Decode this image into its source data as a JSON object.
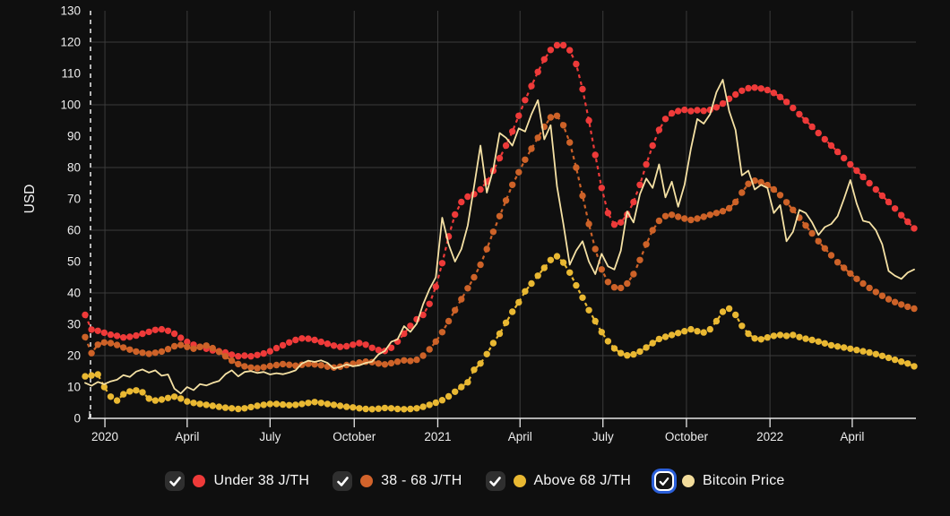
{
  "chart_data": {
    "type": "line",
    "title": "",
    "xlabel": "",
    "ylabel": "USD",
    "ylim": [
      0,
      130
    ],
    "y_tick_step": 10,
    "grid_value_step": 20,
    "grid": true,
    "legend_position": "bottom",
    "weeks_total": 130,
    "x_ticks": [
      {
        "label": "2020",
        "week": 3.1
      },
      {
        "label": "April",
        "week": 16.0
      },
      {
        "label": "July",
        "week": 29.0
      },
      {
        "label": "October",
        "week": 42.2
      },
      {
        "label": "2021",
        "week": 55.3
      },
      {
        "label": "April",
        "week": 68.2
      },
      {
        "label": "July",
        "week": 81.2
      },
      {
        "label": "October",
        "week": 94.3
      },
      {
        "label": "2022",
        "week": 107.4
      },
      {
        "label": "April",
        "week": 120.3
      }
    ],
    "series": [
      {
        "name": "Under 38 J/TH",
        "style": "dotted",
        "color": "#ee3a39",
        "values": [
          33.0,
          28.3,
          27.9,
          27.3,
          26.7,
          26.3,
          25.8,
          26.0,
          26.4,
          27.0,
          27.6,
          28.2,
          28.4,
          27.9,
          27.0,
          25.7,
          24.4,
          23.5,
          22.8,
          22.2,
          21.7,
          21.4,
          21.0,
          20.3,
          19.8,
          20.0,
          19.8,
          20.2,
          20.7,
          21.4,
          22.4,
          23.3,
          24.2,
          25.0,
          25.5,
          25.4,
          25.0,
          24.4,
          23.8,
          23.2,
          22.8,
          23.0,
          23.5,
          24.0,
          23.5,
          22.5,
          21.8,
          21.5,
          22.5,
          24.5,
          27.0,
          29.5,
          31.6,
          33.0,
          36.5,
          42.0,
          49.5,
          58.0,
          65.0,
          69.0,
          70.7,
          71.5,
          73.0,
          75.5,
          79.0,
          83.0,
          87.0,
          91.5,
          96.5,
          101.5,
          106.0,
          110.5,
          114.5,
          117.5,
          119.0,
          119.0,
          117.4,
          113.0,
          105.0,
          95.0,
          84.0,
          73.5,
          65.5,
          61.8,
          62.5,
          65.0,
          69.0,
          74.5,
          81.0,
          87.0,
          92.0,
          95.5,
          97.3,
          98.0,
          98.4,
          98.0,
          98.3,
          98.1,
          98.4,
          99.2,
          100.4,
          101.9,
          103.3,
          104.5,
          105.3,
          105.5,
          105.2,
          104.7,
          103.8,
          102.5,
          100.9,
          99.0,
          97.0,
          95.0,
          93.0,
          91.0,
          89.0,
          87.0,
          85.0,
          83.0,
          81.0,
          79.0,
          77.0,
          75.0,
          73.0,
          71.0,
          69.0,
          66.9,
          64.8,
          62.7,
          60.6
        ]
      },
      {
        "name": "38 - 68 J/TH",
        "style": "dotted",
        "color": "#cd6228",
        "values": [
          25.9,
          20.8,
          23.5,
          24.2,
          24.0,
          23.4,
          22.6,
          21.9,
          21.3,
          20.9,
          20.6,
          20.9,
          21.3,
          22.1,
          23.0,
          23.4,
          22.8,
          22.2,
          22.8,
          23.2,
          22.4,
          21.2,
          19.8,
          18.4,
          17.3,
          16.6,
          16.2,
          16.0,
          16.3,
          16.7,
          17.0,
          17.3,
          17.1,
          16.8,
          17.1,
          17.4,
          17.2,
          16.9,
          16.5,
          16.2,
          16.5,
          17.0,
          17.4,
          17.8,
          18.1,
          17.9,
          17.5,
          17.2,
          17.6,
          18.1,
          18.5,
          18.3,
          18.7,
          20.0,
          22.0,
          24.5,
          27.5,
          31.0,
          34.5,
          38.0,
          41.5,
          45.0,
          49.0,
          54.0,
          59.5,
          64.5,
          69.5,
          74.5,
          78.5,
          82.5,
          86.0,
          89.5,
          93.0,
          96.0,
          96.5,
          93.5,
          88.0,
          80.0,
          71.0,
          62.0,
          54.0,
          47.5,
          43.5,
          41.8,
          41.6,
          43.0,
          46.0,
          50.5,
          55.5,
          60.0,
          63.0,
          64.5,
          64.9,
          64.3,
          63.7,
          63.3,
          63.7,
          64.3,
          64.9,
          65.5,
          66.1,
          67.0,
          69.0,
          72.0,
          74.8,
          75.8,
          75.3,
          74.4,
          73.0,
          71.2,
          68.9,
          66.5,
          64.0,
          61.5,
          59.0,
          56.5,
          54.2,
          52.0,
          49.8,
          48.0,
          46.2,
          44.5,
          43.0,
          41.6,
          40.3,
          39.1,
          38.0,
          37.1,
          36.3,
          35.6,
          35.0
        ]
      },
      {
        "name": "Above 68 J/TH",
        "style": "dotted",
        "color": "#e9b832",
        "values": [
          13.4,
          13.7,
          14.0,
          10.0,
          6.9,
          5.7,
          7.7,
          8.6,
          8.9,
          8.3,
          6.3,
          5.7,
          6.0,
          6.5,
          6.9,
          6.3,
          5.4,
          4.9,
          4.6,
          4.3,
          4.0,
          3.7,
          3.4,
          3.2,
          3.0,
          3.2,
          3.6,
          4.0,
          4.3,
          4.6,
          4.6,
          4.4,
          4.2,
          4.3,
          4.6,
          4.9,
          5.2,
          4.9,
          4.6,
          4.3,
          4.0,
          3.7,
          3.5,
          3.2,
          3.0,
          2.9,
          3.1,
          3.3,
          3.2,
          3.0,
          2.9,
          3.0,
          3.2,
          3.7,
          4.3,
          5.0,
          5.8,
          7.0,
          8.5,
          10.0,
          11.5,
          15.5,
          17.5,
          20.5,
          24.0,
          27.0,
          30.5,
          34.0,
          37.0,
          40.5,
          43.0,
          45.5,
          48.0,
          50.5,
          51.7,
          49.7,
          46.5,
          42.4,
          38.5,
          34.5,
          31.0,
          27.5,
          24.6,
          22.3,
          20.8,
          20.1,
          20.4,
          21.3,
          22.6,
          24.0,
          25.3,
          26.0,
          26.6,
          27.2,
          27.8,
          28.4,
          27.8,
          27.4,
          28.4,
          31.0,
          34.0,
          35.0,
          33.0,
          29.5,
          27.0,
          25.5,
          25.2,
          25.8,
          26.3,
          26.6,
          26.3,
          26.6,
          25.9,
          25.4,
          25.0,
          24.5,
          23.9,
          23.3,
          22.9,
          22.6,
          22.2,
          21.8,
          21.4,
          21.0,
          20.5,
          19.9,
          19.3,
          18.7,
          18.1,
          17.5,
          16.6
        ]
      },
      {
        "name": "Bitcoin Price",
        "style": "line",
        "color": "#f5e1a4",
        "values": [
          11.3,
          10.4,
          11.6,
          10.9,
          11.8,
          12.3,
          13.8,
          13.2,
          14.9,
          15.6,
          14.6,
          15.3,
          13.6,
          14.0,
          9.5,
          7.9,
          10.0,
          9.0,
          10.9,
          10.5,
          11.3,
          11.9,
          14.1,
          15.3,
          13.4,
          14.8,
          15.1,
          14.5,
          14.8,
          14.0,
          14.4,
          14.1,
          14.6,
          15.3,
          17.5,
          18.4,
          18.0,
          18.5,
          17.7,
          15.9,
          16.4,
          17.2,
          16.6,
          16.9,
          17.7,
          18.1,
          20.4,
          21.5,
          24.4,
          25.2,
          29.4,
          27.6,
          30.2,
          36.4,
          41.2,
          45.0,
          64.0,
          55.5,
          50.0,
          54.0,
          61.5,
          74.0,
          87.0,
          72.0,
          79.5,
          91.0,
          89.5,
          87.0,
          92.5,
          91.5,
          97.0,
          101.5,
          89.0,
          93.5,
          74.0,
          62.0,
          49.0,
          53.5,
          56.5,
          50.0,
          46.0,
          52.5,
          48.5,
          47.5,
          53.5,
          66.0,
          62.5,
          71.5,
          76.5,
          73.5,
          81.0,
          70.5,
          75.5,
          67.5,
          74.5,
          86.0,
          95.5,
          94.0,
          97.0,
          104.0,
          108.0,
          98.0,
          92.0,
          77.5,
          79.0,
          73.0,
          74.5,
          73.5,
          65.5,
          68.0,
          56.5,
          59.5,
          66.5,
          65.5,
          62.5,
          58.5,
          61.0,
          62.0,
          64.5,
          70.0,
          76.0,
          68.5,
          63.0,
          62.5,
          60.0,
          55.5,
          47.0,
          45.5,
          44.5,
          46.5,
          47.5
        ]
      }
    ],
    "annotations": {
      "data_start_marker": "dashed vertical line at series start"
    }
  },
  "colors": {
    "background": "#0f0f0f",
    "gridline": "#3b3b3b",
    "axis_line": "#e6e6e6",
    "tick_text": "#ededed",
    "start_marker": "#ffffff",
    "focus_ring": "#2b5fd9"
  },
  "legend": {
    "items": [
      {
        "label": "Under 38 J/TH",
        "color": "#ee3a39",
        "checked": true,
        "focused": false
      },
      {
        "label": "38 - 68 J/TH",
        "color": "#d2632b",
        "checked": true,
        "focused": false
      },
      {
        "label": "Above 68 J/TH",
        "color": "#e9b832",
        "checked": true,
        "focused": false
      },
      {
        "label": "Bitcoin Price",
        "color": "#f2dc9b",
        "checked": true,
        "focused": true
      }
    ]
  }
}
